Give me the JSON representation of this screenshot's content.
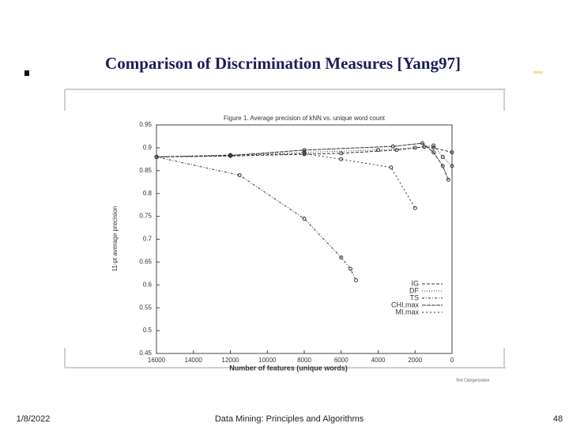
{
  "slide_title": "Comparison of Discrimination Measures [Yang97]",
  "footer": {
    "date": "1/8/2022",
    "center": "Data Mining: Principles and Algorithms",
    "page": "48"
  },
  "note": "Text Categorization",
  "chart_data": {
    "type": "line",
    "title": "Figure 1. Average precision of kNN vs. unique word count",
    "x_label": "Number of features (unique words)",
    "y_label": "11-pt average precision",
    "xlim": [
      16000,
      0
    ],
    "xticks": [
      16000,
      14000,
      12000,
      10000,
      8000,
      6000,
      4000,
      2000,
      0
    ],
    "ylim": [
      0.45,
      0.95
    ],
    "yticks": [
      0.45,
      0.5,
      0.55,
      0.6,
      0.65,
      0.7,
      0.75,
      0.8,
      0.85,
      0.9,
      0.95
    ],
    "legend": "lower right",
    "series": [
      {
        "name": "IG",
        "color": "#333333",
        "x": [
          16000,
          12000,
          8000,
          6000,
          3000,
          1500,
          1000,
          0
        ],
        "values": [
          0.88,
          0.882,
          0.886,
          0.888,
          0.895,
          0.902,
          0.9,
          0.89
        ]
      },
      {
        "name": "DF",
        "color": "#333333",
        "x": [
          16000,
          12000,
          8000,
          4000,
          2000,
          1000,
          500,
          0
        ],
        "values": [
          0.88,
          0.884,
          0.89,
          0.895,
          0.9,
          0.905,
          0.88,
          0.86
        ]
      },
      {
        "name": "TS",
        "color": "#333333",
        "x": [
          16000,
          11500,
          8000,
          6000,
          5500,
          5200
        ],
        "values": [
          0.88,
          0.84,
          0.745,
          0.66,
          0.635,
          0.61
        ]
      },
      {
        "name": "CHI.max",
        "color": "#333333",
        "x": [
          16000,
          12000,
          8000,
          3200,
          1600,
          1000,
          500,
          200
        ],
        "values": [
          0.88,
          0.883,
          0.895,
          0.903,
          0.91,
          0.89,
          0.86,
          0.83
        ]
      },
      {
        "name": "MI.max",
        "color": "#333333",
        "x": [
          16000,
          12000,
          8000,
          6000,
          3300,
          2000
        ],
        "values": [
          0.88,
          0.884,
          0.887,
          0.875,
          0.857,
          0.768
        ]
      }
    ]
  }
}
